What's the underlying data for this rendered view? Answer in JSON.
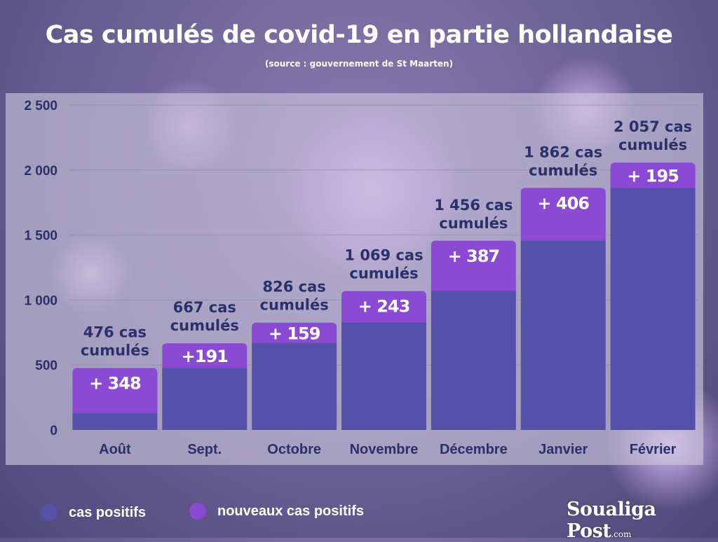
{
  "title": "Cas cumulés de covid-19 en partie hollandaise",
  "subtitle": "(source : gouvernement de St Maarten)",
  "legend": [
    {
      "label": "cas positifs",
      "color": "#5550a8"
    },
    {
      "label": "nouveaux cas positifs",
      "color": "#8a4ad3"
    }
  ],
  "brand": {
    "name": "Soualiga Post",
    "suffix": ".com"
  },
  "colors": {
    "base": "#5550a8",
    "increase": "#8a4ad3",
    "axis_text": "#2b2f6a",
    "grid": "#8d88a8"
  },
  "chart_data": {
    "type": "bar",
    "stacked": true,
    "categories": [
      "Août",
      "Sept.",
      "Octobre",
      "Novembre",
      "Décembre",
      "Janvier",
      "Février"
    ],
    "series": [
      {
        "name": "cas positifs",
        "values": [
          128,
          476,
          667,
          826,
          1069,
          1456,
          1862
        ]
      },
      {
        "name": "nouveaux cas positifs",
        "values": [
          348,
          191,
          159,
          243,
          387,
          406,
          195
        ]
      }
    ],
    "increase_labels": [
      "+ 348",
      "+191",
      "+ 159",
      "+ 243",
      "+ 387",
      "+ 406",
      "+ 195"
    ],
    "total_labels": [
      [
        "476 cas",
        "cumulés"
      ],
      [
        "667 cas",
        "cumulés"
      ],
      [
        "826 cas",
        "cumulés"
      ],
      [
        "1 069 cas",
        "cumulés"
      ],
      [
        "1 456 cas",
        "cumulés"
      ],
      [
        "1 862 cas",
        "cumulés"
      ],
      [
        "2 057 cas",
        "cumulés"
      ]
    ],
    "y_ticks": [
      0,
      500,
      1000,
      1500,
      2000,
      2500
    ],
    "y_tick_labels": [
      "0",
      "500",
      "1 000",
      "1 500",
      "2 000",
      "2 500"
    ],
    "ylim": [
      0,
      2500
    ],
    "grid": true,
    "legend_position": "bottom-left"
  }
}
